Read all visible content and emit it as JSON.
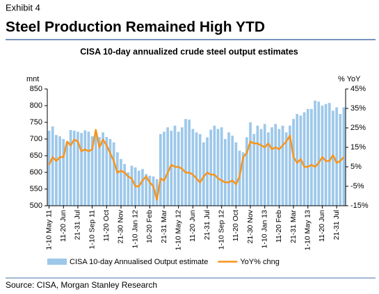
{
  "header": {
    "exhibit": "Exhibit 4",
    "title": "Steel Production Remained High YTD"
  },
  "chart_data": {
    "type": "bar_line",
    "title": "CISA 10-day annualized crude steel output estimates",
    "y_label": "mnt",
    "y2_label": "% YoY",
    "categories": [
      "1-10 May 11",
      null,
      null,
      null,
      "11-20 Jun",
      null,
      null,
      null,
      "21-31 Jul",
      null,
      null,
      null,
      "1-10 Sep 11",
      null,
      null,
      null,
      "11-20 Oct",
      null,
      null,
      null,
      "21-30 Nov",
      null,
      null,
      null,
      "1-10 Jan 12",
      null,
      null,
      null,
      "10-20 Feb",
      null,
      null,
      null,
      "21-31 Mar",
      null,
      null,
      null,
      "1-10 May 12",
      null,
      null,
      null,
      "11-20 Jun",
      null,
      null,
      null,
      "21-31 Jul",
      null,
      null,
      null,
      "1-10 Sep 12",
      null,
      null,
      null,
      "11-20 Oct",
      null,
      null,
      null,
      "21-30 Nov",
      null,
      null,
      null,
      "1-10 Jan 13",
      null,
      null,
      null,
      "11-20 Feb",
      null,
      null,
      null,
      "21-31 Mar",
      null,
      null,
      null,
      "1-10 May 13",
      null,
      null,
      null,
      "11-20 Jun",
      null,
      null,
      null,
      "21-31 Jul",
      null,
      null
    ],
    "series": [
      {
        "name": "CISA 10-day Annualised Output estimate",
        "type": "bar",
        "axis": "y",
        "color": "#9dc8ea",
        "values": [
          725,
          738,
          712,
          708,
          700,
          690,
          727,
          725,
          722,
          718,
          726,
          722,
          708,
          712,
          706,
          720,
          706,
          700,
          690,
          660,
          640,
          625,
          600,
          620,
          615,
          605,
          610,
          595,
          590,
          588,
          580,
          715,
          722,
          735,
          725,
          740,
          722,
          735,
          760,
          758,
          730,
          720,
          715,
          690,
          705,
          728,
          740,
          730,
          735,
          700,
          720,
          710,
          690,
          665,
          660,
          705,
          750,
          715,
          740,
          730,
          745,
          720,
          735,
          745,
          730,
          740,
          720,
          740,
          760,
          775,
          770,
          780,
          790,
          790,
          815,
          812,
          800,
          805,
          808,
          785,
          795,
          775,
          795
        ]
      },
      {
        "name": "YoY% chng",
        "type": "line",
        "axis": "y2",
        "color": "#f7941d",
        "values": [
          6,
          10,
          8,
          10,
          10,
          18,
          16,
          19,
          18,
          13,
          14,
          13,
          14,
          24,
          15,
          19,
          16,
          12,
          8,
          2,
          3,
          2,
          0,
          -1,
          -5,
          -5,
          -2,
          0,
          -3,
          -5,
          -12,
          -1,
          -2,
          2,
          6,
          5,
          5,
          4,
          2,
          2,
          1,
          -1,
          -3,
          0,
          2,
          1,
          1,
          -1,
          -2,
          -3,
          -3,
          -2,
          -4,
          0,
          10,
          12,
          18,
          17,
          17,
          16,
          15,
          17,
          14,
          15,
          14,
          16,
          18,
          21,
          10,
          7,
          9,
          5,
          5,
          6,
          5,
          7,
          10,
          8,
          8,
          11,
          7,
          8,
          10
        ]
      }
    ],
    "ylim": [
      500,
      850
    ],
    "yticks": [
      500,
      550,
      600,
      650,
      700,
      750,
      800,
      850
    ],
    "y2lim": [
      -15,
      45
    ],
    "y2ticks": [
      {
        "value": -15,
        "label": "-15%"
      },
      {
        "value": -5,
        "label": "-5%"
      },
      {
        "value": 5,
        "label": "5%"
      },
      {
        "value": 15,
        "label": "15%"
      },
      {
        "value": 25,
        "label": "25%"
      },
      {
        "value": 35,
        "label": "35%"
      },
      {
        "value": 45,
        "label": "45%"
      }
    ],
    "grid": false,
    "legend": "bottom"
  },
  "footer": {
    "source": "Source: CISA, Morgan Stanley Research"
  }
}
